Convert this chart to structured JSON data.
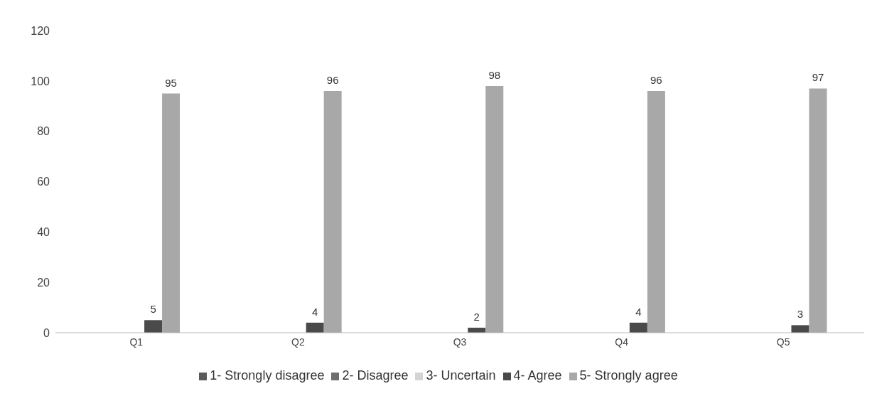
{
  "chart_data": {
    "type": "bar",
    "categories": [
      "Q1",
      "Q2",
      "Q3",
      "Q4",
      "Q5"
    ],
    "series": [
      {
        "name": "1- Strongly disagree",
        "color": "#5a5a5a",
        "values": [
          0,
          0,
          0,
          0,
          0
        ]
      },
      {
        "name": "2- Disagree",
        "color": "#6e6e6e",
        "values": [
          0,
          0,
          0,
          0,
          0
        ]
      },
      {
        "name": "3- Uncertain",
        "color": "#d4d4d4",
        "values": [
          0,
          0,
          0,
          0,
          0
        ]
      },
      {
        "name": "4- Agree",
        "color": "#4a4a4a",
        "values": [
          5,
          4,
          2,
          4,
          3
        ],
        "value_labels": [
          "5",
          "4",
          "2",
          "4",
          "3"
        ]
      },
      {
        "name": "5- Strongly agree",
        "color": "#a8a8a8",
        "values": [
          95,
          96,
          98,
          96,
          97
        ],
        "value_labels": [
          "95",
          "96",
          "98",
          "96",
          "97"
        ]
      }
    ],
    "ylim": [
      0,
      120
    ],
    "yticks": [
      0,
      20,
      40,
      60,
      80,
      100,
      120
    ],
    "grid": false,
    "legend": "bottom"
  }
}
